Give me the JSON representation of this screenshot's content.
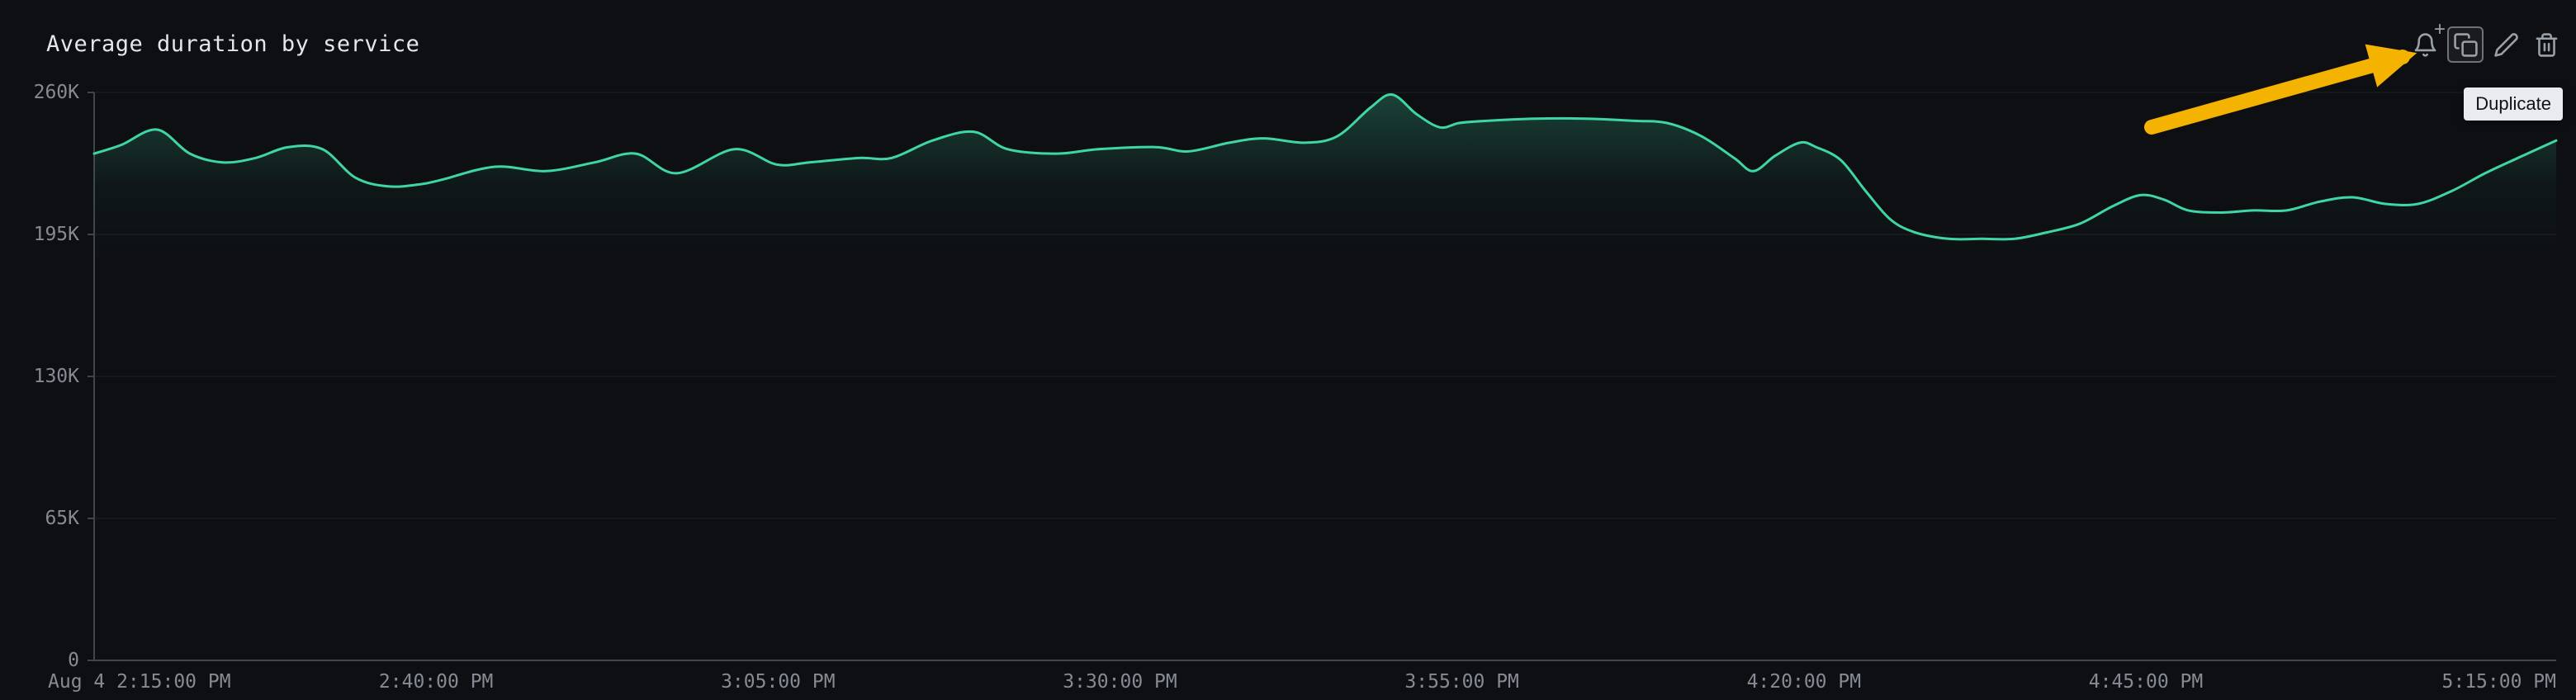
{
  "panel": {
    "title": "Average duration by service"
  },
  "toolbar": {
    "tooltip": "Duplicate",
    "buttons": [
      {
        "id": "alert",
        "icon": "bell-plus-icon"
      },
      {
        "id": "duplicate",
        "icon": "duplicate-icon",
        "highlighted": true
      },
      {
        "id": "edit",
        "icon": "pencil-icon"
      },
      {
        "id": "delete",
        "icon": "trash-icon"
      }
    ]
  },
  "colors": {
    "background": "#0d0f13",
    "title_text": "#e3e6ea",
    "axis_text": "#868b93",
    "axis_line": "#40444b",
    "grid_line": "rgba(255,255,255,0.04)",
    "line": "#3fd6a3",
    "arrow": "#f5b301",
    "tooltip_bg": "#e9ebee",
    "tooltip_text": "#101216",
    "icon": "#9aa0a8"
  },
  "chart_data": {
    "type": "line",
    "title": "Average duration by service",
    "legend": false,
    "grid": "faint-horizontal",
    "x_axis": {
      "unit": "minutes after 2:15:00 PM",
      "range_minutes": [
        0,
        180
      ],
      "ticks": [
        {
          "label": "Aug 4 2:15:00 PM",
          "t": 0,
          "anchor": "start"
        },
        {
          "label": "2:40:00 PM",
          "t": 25
        },
        {
          "label": "3:05:00 PM",
          "t": 50
        },
        {
          "label": "3:30:00 PM",
          "t": 75
        },
        {
          "label": "3:55:00 PM",
          "t": 100
        },
        {
          "label": "4:20:00 PM",
          "t": 125
        },
        {
          "label": "4:45:00 PM",
          "t": 150
        },
        {
          "label": "5:15:00 PM",
          "t": 180,
          "anchor": "end"
        }
      ]
    },
    "y_axis": {
      "unit": "K",
      "range": [
        0,
        260
      ],
      "ticks": [
        {
          "label": "260K",
          "v": 260
        },
        {
          "label": "195K",
          "v": 195
        },
        {
          "label": "130K",
          "v": 130
        },
        {
          "label": "65K",
          "v": 65
        },
        {
          "label": "0",
          "v": 0
        }
      ]
    },
    "series": [
      {
        "name": "Average duration",
        "color": "#3fd6a3",
        "points": [
          [
            0,
            232
          ],
          [
            2,
            236
          ],
          [
            4.6,
            243
          ],
          [
            7,
            232
          ],
          [
            9.4,
            228
          ],
          [
            11.8,
            230
          ],
          [
            14.2,
            235
          ],
          [
            16.7,
            234
          ],
          [
            19.1,
            221
          ],
          [
            21.5,
            217
          ],
          [
            23.9,
            218
          ],
          [
            25.4,
            220
          ],
          [
            29.3,
            226
          ],
          [
            33,
            224
          ],
          [
            36.6,
            228
          ],
          [
            39.6,
            232
          ],
          [
            42.6,
            223
          ],
          [
            46.8,
            234
          ],
          [
            49.9,
            227
          ],
          [
            52.3,
            228
          ],
          [
            55.9,
            230
          ],
          [
            58.3,
            230
          ],
          [
            61.3,
            238
          ],
          [
            64.3,
            242
          ],
          [
            66.8,
            234
          ],
          [
            70.4,
            232
          ],
          [
            73.4,
            234
          ],
          [
            77.6,
            235
          ],
          [
            80,
            233
          ],
          [
            83,
            237
          ],
          [
            85.5,
            239
          ],
          [
            88.5,
            237
          ],
          [
            90.9,
            240
          ],
          [
            93.3,
            253
          ],
          [
            94.9,
            259
          ],
          [
            96.7,
            250
          ],
          [
            98.4,
            244
          ],
          [
            99.8,
            246
          ],
          [
            101.8,
            247
          ],
          [
            105.4,
            248
          ],
          [
            109,
            248
          ],
          [
            112.6,
            247
          ],
          [
            115,
            246
          ],
          [
            117.5,
            240
          ],
          [
            119.9,
            230
          ],
          [
            121.3,
            224
          ],
          [
            122.9,
            231
          ],
          [
            124.7,
            237
          ],
          [
            125.9,
            235
          ],
          [
            127.7,
            229
          ],
          [
            129.5,
            215
          ],
          [
            131.3,
            202
          ],
          [
            133.1,
            196
          ],
          [
            135.6,
            193
          ],
          [
            138,
            193
          ],
          [
            140.4,
            193
          ],
          [
            142.8,
            196
          ],
          [
            145.2,
            200
          ],
          [
            147.6,
            208
          ],
          [
            149.6,
            213
          ],
          [
            151.3,
            211
          ],
          [
            153.1,
            206
          ],
          [
            155.5,
            205
          ],
          [
            157.9,
            206
          ],
          [
            160.3,
            206
          ],
          [
            162.7,
            210
          ],
          [
            165.1,
            212
          ],
          [
            167.5,
            209
          ],
          [
            169.9,
            209
          ],
          [
            172.4,
            215
          ],
          [
            174.8,
            223
          ],
          [
            177.2,
            230
          ],
          [
            180,
            238
          ]
        ]
      }
    ]
  }
}
